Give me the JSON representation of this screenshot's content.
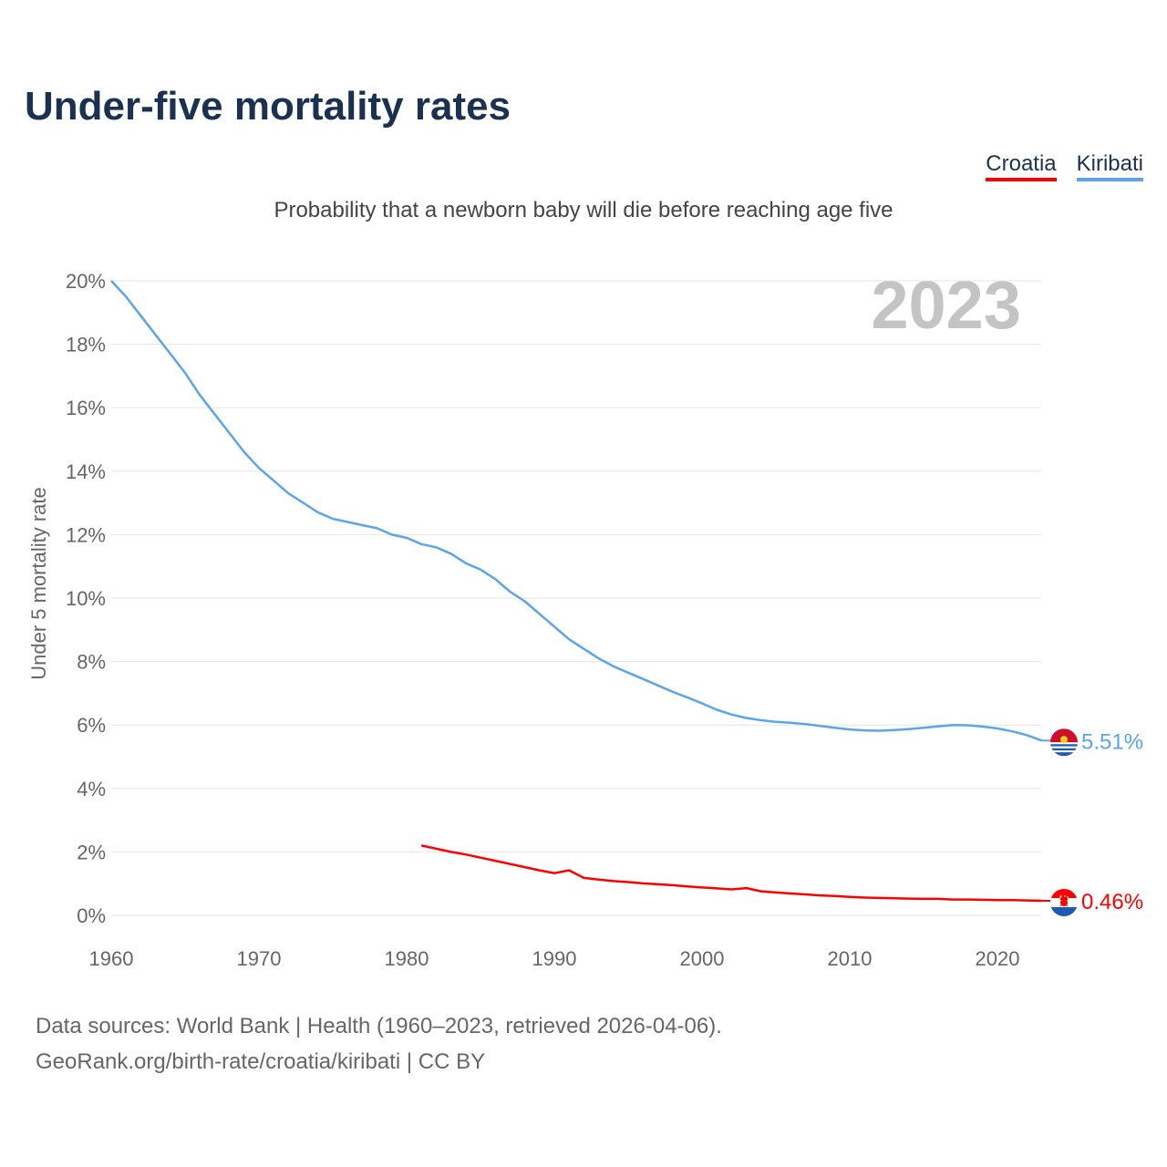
{
  "header": {
    "title": "Under-five mortality rates",
    "subtitle": "Probability that a newborn baby will die before reaching age five"
  },
  "legend": [
    {
      "label": "Croatia",
      "color": "#ff0000"
    },
    {
      "label": "Kiribati",
      "color": "#5aa5ec"
    }
  ],
  "footer": {
    "line1": "Data sources: World Bank | Health (1960–2023, retrieved 2026-04-06).",
    "line2": "GeoRank.org/birth-rate/croatia/kiribati | CC BY"
  },
  "chart_data": {
    "type": "line",
    "title": "Under-five mortality rates",
    "ylabel": "Under 5 mortality rate",
    "xlabel": "",
    "year_watermark": "2023",
    "xlim": [
      1960,
      2023
    ],
    "ylim": [
      0,
      20
    ],
    "x_ticks": [
      1960,
      1970,
      1980,
      1990,
      2000,
      2010,
      2020
    ],
    "y_ticks": [
      "0%",
      "2%",
      "4%",
      "6%",
      "8%",
      "10%",
      "12%",
      "14%",
      "16%",
      "18%",
      "20%"
    ],
    "y_tick_values": [
      0,
      2,
      4,
      6,
      8,
      10,
      12,
      14,
      16,
      18,
      20
    ],
    "grid": true,
    "legend_position": "top-right",
    "series": [
      {
        "name": "Kiribati",
        "color": "#5aa5ec",
        "end_label": "5.51%",
        "start_year": 1960,
        "values": [
          20.0,
          19.5,
          18.9,
          18.3,
          17.7,
          17.1,
          16.4,
          15.8,
          15.2,
          14.6,
          14.1,
          13.7,
          13.3,
          13.0,
          12.7,
          12.5,
          12.4,
          12.3,
          12.2,
          12.0,
          11.9,
          11.7,
          11.6,
          11.4,
          11.1,
          10.9,
          10.6,
          10.2,
          9.9,
          9.5,
          9.1,
          8.7,
          8.4,
          8.1,
          7.85,
          7.65,
          7.45,
          7.25,
          7.05,
          6.87,
          6.68,
          6.48,
          6.33,
          6.22,
          6.15,
          6.1,
          6.07,
          6.03,
          5.97,
          5.91,
          5.86,
          5.83,
          5.82,
          5.84,
          5.87,
          5.91,
          5.96,
          6.0,
          5.99,
          5.95,
          5.89,
          5.8,
          5.68,
          5.51
        ]
      },
      {
        "name": "Croatia",
        "color": "#ff0000",
        "end_label": "0.46%",
        "start_year": 1981,
        "values": [
          2.2,
          2.1,
          2.0,
          1.92,
          1.82,
          1.72,
          1.62,
          1.52,
          1.42,
          1.33,
          1.42,
          1.18,
          1.13,
          1.08,
          1.05,
          1.01,
          0.98,
          0.95,
          0.91,
          0.88,
          0.85,
          0.82,
          0.86,
          0.76,
          0.72,
          0.69,
          0.66,
          0.63,
          0.61,
          0.58,
          0.56,
          0.55,
          0.54,
          0.53,
          0.52,
          0.52,
          0.5,
          0.5,
          0.49,
          0.48,
          0.48,
          0.47,
          0.46
        ]
      }
    ]
  }
}
